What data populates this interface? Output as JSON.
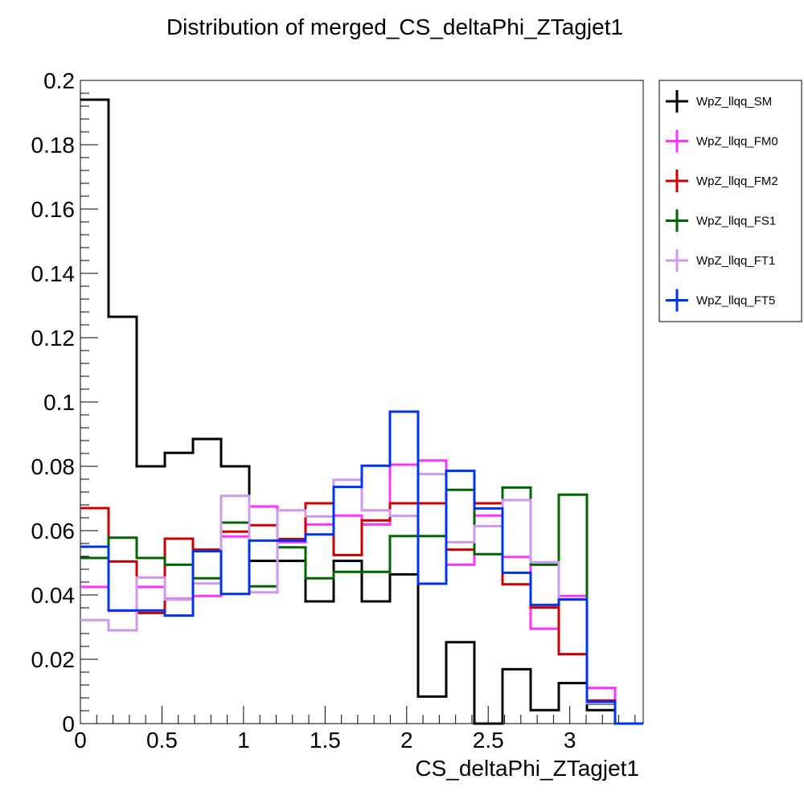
{
  "chart_data": {
    "type": "histogram-step",
    "title": "Distribution of merged_CS_deltaPhi_ZTagjet1",
    "xlabel": "CS_deltaPhi_ZTagjet1",
    "ylabel": "",
    "xlim": [
      0,
      3.45
    ],
    "ylim": [
      0,
      0.2
    ],
    "xticks": [
      0,
      0.5,
      1,
      1.5,
      2,
      2.5,
      3
    ],
    "xtick_labels": [
      "0",
      "0.5",
      "1",
      "1.5",
      "2",
      "2.5",
      "3"
    ],
    "yticks": [
      0,
      0.02,
      0.04,
      0.06,
      0.08,
      0.1,
      0.12,
      0.14,
      0.16,
      0.18,
      0.2
    ],
    "ytick_labels": [
      "0",
      "0.02",
      "0.04",
      "0.06",
      "0.08",
      "0.1",
      "0.12",
      "0.14",
      "0.16",
      "0.18",
      "0.2"
    ],
    "bin_edges": [
      0,
      0.1725,
      0.345,
      0.5175,
      0.69,
      0.8625,
      1.035,
      1.2075,
      1.38,
      1.5525,
      1.725,
      1.8975,
      2.07,
      2.2425,
      2.415,
      2.5875,
      2.76,
      2.9325,
      3.105,
      3.2775,
      3.45
    ],
    "legend_position": "right, outside plot",
    "series": [
      {
        "name": "WpZ_llqq_SM",
        "color": "#000000",
        "values": [
          0.194,
          0.1265,
          0.08,
          0.0842,
          0.0885,
          0.08,
          0.0506,
          0.0506,
          0.038,
          0.0506,
          0.038,
          0.0464,
          0.0084,
          0.0253,
          0.0,
          0.0169,
          0.0042,
          0.0126,
          0.0042,
          0.0
        ]
      },
      {
        "name": "WpZ_llqq_FM0",
        "color": "#ff33ff",
        "values": [
          0.0425,
          0.0351,
          0.0425,
          0.0388,
          0.0397,
          0.0582,
          0.0675,
          0.0564,
          0.0619,
          0.0647,
          0.0619,
          0.0805,
          0.0818,
          0.0494,
          0.0647,
          0.0518,
          0.0295,
          0.0397,
          0.0111,
          0.0
        ]
      },
      {
        "name": "WpZ_llqq_FM2",
        "color": "#cc0000",
        "values": [
          0.067,
          0.0504,
          0.0344,
          0.0575,
          0.0541,
          0.0597,
          0.0617,
          0.0574,
          0.0685,
          0.0524,
          0.0632,
          0.0685,
          0.0685,
          0.0541,
          0.0685,
          0.0433,
          0.0361,
          0.0216,
          0.0072,
          0.0
        ]
      },
      {
        "name": "WpZ_llqq_FS1",
        "color": "#006600",
        "values": [
          0.0515,
          0.0578,
          0.0515,
          0.0494,
          0.0452,
          0.0625,
          0.0427,
          0.0548,
          0.0452,
          0.0472,
          0.0472,
          0.0583,
          0.0583,
          0.0727,
          0.0527,
          0.0734,
          0.0494,
          0.0712,
          0.0062,
          0.0
        ]
      },
      {
        "name": "WpZ_llqq_FT1",
        "color": "#cc99ee",
        "values": [
          0.0322,
          0.029,
          0.0454,
          0.0386,
          0.0436,
          0.0708,
          0.0408,
          0.0663,
          0.0644,
          0.0758,
          0.0663,
          0.0646,
          0.0776,
          0.0564,
          0.0614,
          0.0695,
          0.0502,
          0.0386,
          0.0064,
          0.0
        ]
      },
      {
        "name": "WpZ_llqq_FT5",
        "color": "#0033ee",
        "values": [
          0.055,
          0.0352,
          0.0352,
          0.0336,
          0.0536,
          0.0403,
          0.0569,
          0.0569,
          0.0588,
          0.0736,
          0.0802,
          0.097,
          0.0435,
          0.0786,
          0.0669,
          0.0469,
          0.0369,
          0.0386,
          0.0068,
          0.0
        ]
      }
    ]
  }
}
